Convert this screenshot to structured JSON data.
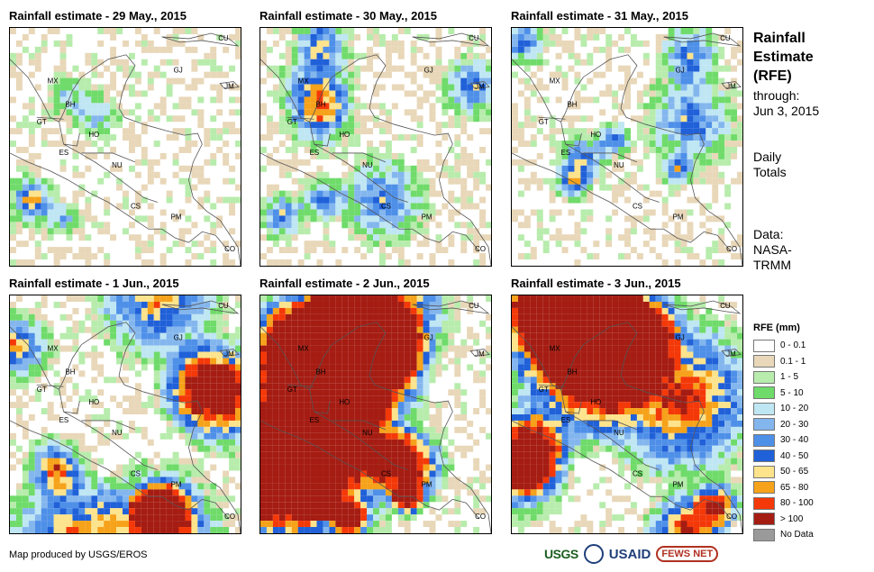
{
  "panels": [
    {
      "title": "Rainfall estimate - 29 May., 2015",
      "intensity": 1,
      "seed": 11
    },
    {
      "title": "Rainfall estimate - 30 May., 2015",
      "intensity": 2,
      "seed": 23
    },
    {
      "title": "Rainfall estimate - 31 May., 2015",
      "intensity": 2,
      "seed": 37
    },
    {
      "title": "Rainfall estimate - 1 Jun., 2015",
      "intensity": 3,
      "seed": 41
    },
    {
      "title": "Rainfall estimate - 2 Jun., 2015",
      "intensity": 5,
      "seed": 53
    },
    {
      "title": "Rainfall estimate - 3 Jun., 2015",
      "intensity": 4,
      "seed": 67
    }
  ],
  "country_labels": [
    "CU",
    "GJ",
    "JM",
    "MX",
    "BH",
    "GT",
    "HO",
    "ES",
    "NU",
    "CS",
    "PM",
    "CO"
  ],
  "sidebar": {
    "title_line1": "Rainfall",
    "title_line2": "Estimate",
    "title_line3": "(RFE)",
    "through": "through:",
    "date": "Jun 3, 2015",
    "daily1": "Daily",
    "daily2": "Totals",
    "data_line1": "Data:",
    "data_line2": "NASA-",
    "data_line3": "TRMM"
  },
  "legend": {
    "title": "RFE (mm)",
    "items": [
      {
        "label": "0 - 0.1",
        "color": "#ffffff"
      },
      {
        "label": "0.1 - 1",
        "color": "#e8d7b8"
      },
      {
        "label": "1 - 5",
        "color": "#b7ecac"
      },
      {
        "label": "5 - 10",
        "color": "#6fdb6a"
      },
      {
        "label": "10 - 20",
        "color": "#bfe6f3"
      },
      {
        "label": "20 - 30",
        "color": "#84b6ee"
      },
      {
        "label": "30 - 40",
        "color": "#4e8fe8"
      },
      {
        "label": "40 - 50",
        "color": "#2060d8"
      },
      {
        "label": "50 - 65",
        "color": "#fde38c"
      },
      {
        "label": "65 - 80",
        "color": "#f6a21a"
      },
      {
        "label": "80 - 100",
        "color": "#f43808"
      },
      {
        "label": "> 100",
        "color": "#a51c12"
      },
      {
        "label": "No Data",
        "color": "#9a9a9a"
      }
    ]
  },
  "credit": "Map produced by USGS/EROS",
  "logos": {
    "usgs": "USGS",
    "usaid": "USAID",
    "fews": "FEWS NET"
  }
}
